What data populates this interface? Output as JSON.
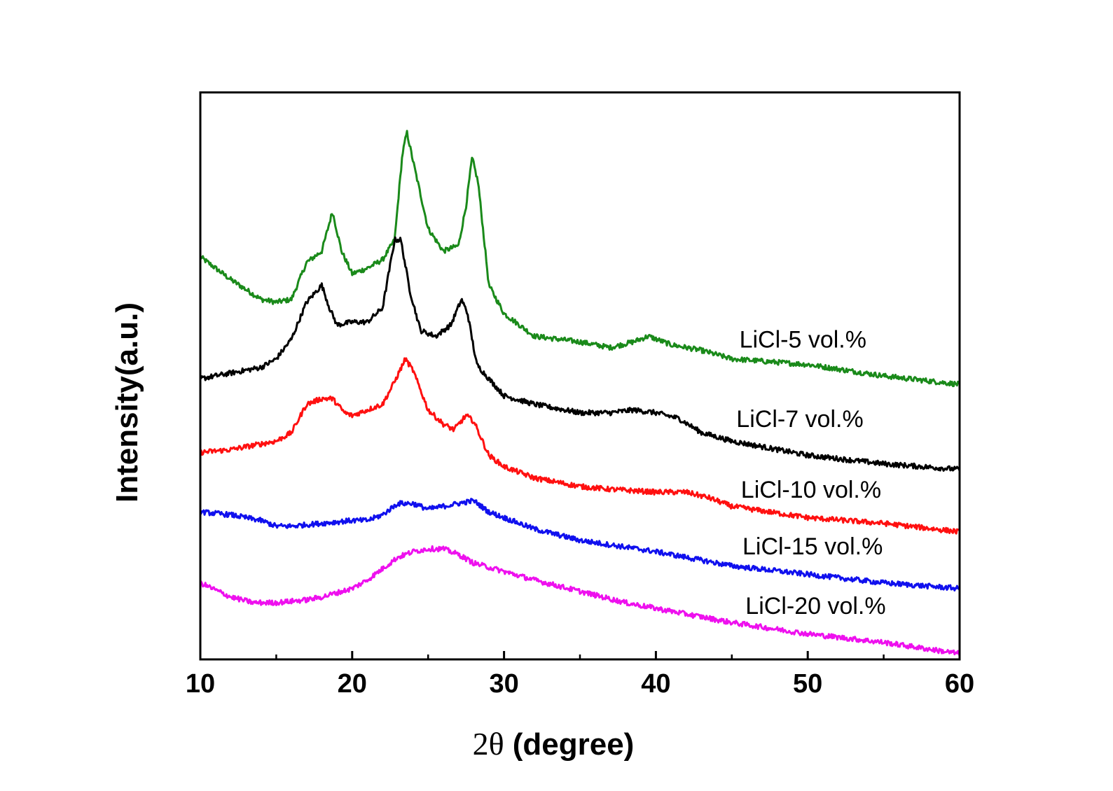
{
  "chart_data": {
    "type": "line",
    "title": "",
    "xlabel_prefix": "2θ",
    "xlabel_text": "(degree)",
    "ylabel": "Intensity(a.u.)",
    "xlim": [
      10,
      60
    ],
    "ylim": [
      0,
      100
    ],
    "y_ticks_shown": false,
    "x_ticks": [
      {
        "value": 10,
        "label": "10"
      },
      {
        "value": 20,
        "label": "20"
      },
      {
        "value": 30,
        "label": "30"
      },
      {
        "value": 40,
        "label": "40"
      },
      {
        "value": 50,
        "label": "50"
      },
      {
        "value": 60,
        "label": "60"
      }
    ],
    "series": [
      {
        "name": "LiCl-5 vol.%",
        "color": "#1a8a1a",
        "label_anchor": [
          45.5,
          55.0
        ],
        "points": [
          [
            10,
            71
          ],
          [
            12,
            67
          ],
          [
            14,
            63.5
          ],
          [
            15,
            63
          ],
          [
            16,
            63.5
          ],
          [
            17,
            70
          ],
          [
            18,
            72
          ],
          [
            18.7,
            79
          ],
          [
            19.3,
            72
          ],
          [
            20,
            68
          ],
          [
            21,
            69
          ],
          [
            22,
            70.5
          ],
          [
            22.8,
            74
          ],
          [
            23.3,
            89
          ],
          [
            23.6,
            93
          ],
          [
            24,
            88
          ],
          [
            25,
            76
          ],
          [
            26,
            72
          ],
          [
            27,
            73
          ],
          [
            27.5,
            80
          ],
          [
            27.9,
            88.5
          ],
          [
            28.3,
            84
          ],
          [
            29,
            66
          ],
          [
            30,
            61
          ],
          [
            32,
            57
          ],
          [
            35,
            56
          ],
          [
            37,
            55
          ],
          [
            38.5,
            56
          ],
          [
            39.5,
            57
          ],
          [
            41,
            55.5
          ],
          [
            43,
            54.5
          ],
          [
            45,
            53
          ],
          [
            50,
            52
          ],
          [
            55,
            50
          ],
          [
            60,
            48.5
          ]
        ]
      },
      {
        "name": "LiCl-7 vol.%",
        "color": "#000000",
        "label_anchor": [
          45.3,
          41.0
        ],
        "points": [
          [
            10,
            49.5
          ],
          [
            12,
            50.5
          ],
          [
            14,
            51.5
          ],
          [
            15,
            53
          ],
          [
            16,
            56.5
          ],
          [
            17,
            63
          ],
          [
            18,
            66
          ],
          [
            18.5,
            62
          ],
          [
            19,
            59
          ],
          [
            20,
            59.5
          ],
          [
            21,
            59.5
          ],
          [
            22,
            62
          ],
          [
            22.8,
            74
          ],
          [
            23.2,
            74
          ],
          [
            23.8,
            65
          ],
          [
            24.5,
            58
          ],
          [
            25.5,
            57
          ],
          [
            26.5,
            59
          ],
          [
            27.2,
            63.5
          ],
          [
            27.6,
            61
          ],
          [
            28.2,
            52
          ],
          [
            29,
            49.5
          ],
          [
            30,
            46.5
          ],
          [
            32,
            45
          ],
          [
            35,
            43.5
          ],
          [
            37,
            43.5
          ],
          [
            38.5,
            44
          ],
          [
            40,
            43.5
          ],
          [
            41.5,
            42.5
          ],
          [
            43,
            40
          ],
          [
            45,
            38.5
          ],
          [
            50,
            36
          ],
          [
            55,
            34.5
          ],
          [
            60,
            33.5
          ]
        ]
      },
      {
        "name": "LiCl-10 vol.%",
        "color": "#ff1010",
        "label_anchor": [
          45.6,
          28.5
        ],
        "points": [
          [
            10,
            36.5
          ],
          [
            12,
            37
          ],
          [
            14,
            38
          ],
          [
            15,
            38.5
          ],
          [
            16,
            40
          ],
          [
            17,
            45
          ],
          [
            18,
            46
          ],
          [
            18.7,
            46
          ],
          [
            19.5,
            43.5
          ],
          [
            20,
            43
          ],
          [
            21,
            44
          ],
          [
            22,
            45
          ],
          [
            22.8,
            49
          ],
          [
            23.5,
            53
          ],
          [
            24,
            51
          ],
          [
            25,
            44
          ],
          [
            26,
            41.5
          ],
          [
            26.7,
            40.5
          ],
          [
            27.5,
            43
          ],
          [
            28,
            42
          ],
          [
            29,
            36
          ],
          [
            30,
            34
          ],
          [
            32,
            32
          ],
          [
            35,
            30.5
          ],
          [
            37,
            30
          ],
          [
            40,
            29.5
          ],
          [
            42,
            29.5
          ],
          [
            43.5,
            28.5
          ],
          [
            45,
            27
          ],
          [
            50,
            25
          ],
          [
            55,
            24
          ],
          [
            60,
            22.5
          ]
        ]
      },
      {
        "name": "LiCl-15 vol.%",
        "color": "#1010ee",
        "label_anchor": [
          45.7,
          18.5
        ],
        "points": [
          [
            10,
            26
          ],
          [
            12,
            25.5
          ],
          [
            14,
            24.5
          ],
          [
            15,
            23.5
          ],
          [
            16,
            23.5
          ],
          [
            18,
            24
          ],
          [
            20,
            24.5
          ],
          [
            21,
            24.5
          ],
          [
            22,
            25.5
          ],
          [
            23,
            27.5
          ],
          [
            24,
            27.5
          ],
          [
            25,
            26.5
          ],
          [
            26,
            27
          ],
          [
            27,
            27.5
          ],
          [
            28,
            28
          ],
          [
            29,
            26
          ],
          [
            30,
            25
          ],
          [
            32,
            23
          ],
          [
            35,
            21
          ],
          [
            40,
            19
          ],
          [
            45,
            16.5
          ],
          [
            50,
            15
          ],
          [
            55,
            13.5
          ],
          [
            60,
            12.5
          ]
        ]
      },
      {
        "name": "LiCl-20 vol.%",
        "color": "#ee10ee",
        "label_anchor": [
          45.9,
          8.0
        ],
        "points": [
          [
            10,
            13.5
          ],
          [
            12,
            11
          ],
          [
            13.5,
            10
          ],
          [
            15,
            10
          ],
          [
            17,
            10.5
          ],
          [
            18,
            11
          ],
          [
            20,
            12.5
          ],
          [
            21,
            14
          ],
          [
            22,
            16
          ],
          [
            23,
            18
          ],
          [
            24,
            19
          ],
          [
            25,
            19.5
          ],
          [
            26,
            19.5
          ],
          [
            27,
            18.5
          ],
          [
            28,
            17
          ],
          [
            30,
            15.5
          ],
          [
            32,
            14
          ],
          [
            35,
            12
          ],
          [
            38,
            10
          ],
          [
            40,
            9
          ],
          [
            45,
            6.5
          ],
          [
            50,
            4.5
          ],
          [
            55,
            3
          ],
          [
            60,
            1
          ]
        ]
      }
    ]
  }
}
